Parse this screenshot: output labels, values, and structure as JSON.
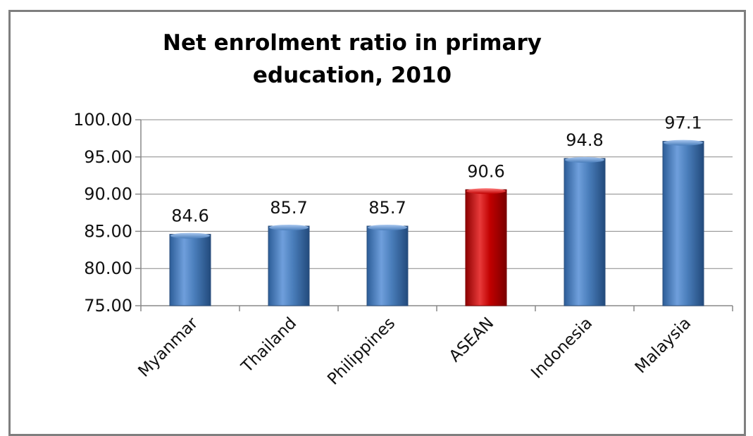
{
  "chart_data": {
    "type": "bar",
    "title_lines": [
      "Net enrolment ratio in primary",
      "education, 2010"
    ],
    "categories": [
      "Myanmar",
      "Thailand",
      "Philippines",
      "ASEAN",
      "Indonesia",
      "Malaysia"
    ],
    "values": [
      84.6,
      85.7,
      85.7,
      90.6,
      94.8,
      97.1
    ],
    "data_labels": [
      "84.6",
      "85.7",
      "85.7",
      "90.6",
      "94.8",
      "97.1"
    ],
    "highlight_category": "ASEAN",
    "ylim": [
      75,
      100
    ],
    "yticks": [
      "75.00",
      "80.00",
      "85.00",
      "90.00",
      "95.00",
      "100.00"
    ],
    "grid": true,
    "colors": {
      "bar": "#4a7ebb",
      "highlight": "#c00000",
      "grid": "#888888"
    }
  }
}
